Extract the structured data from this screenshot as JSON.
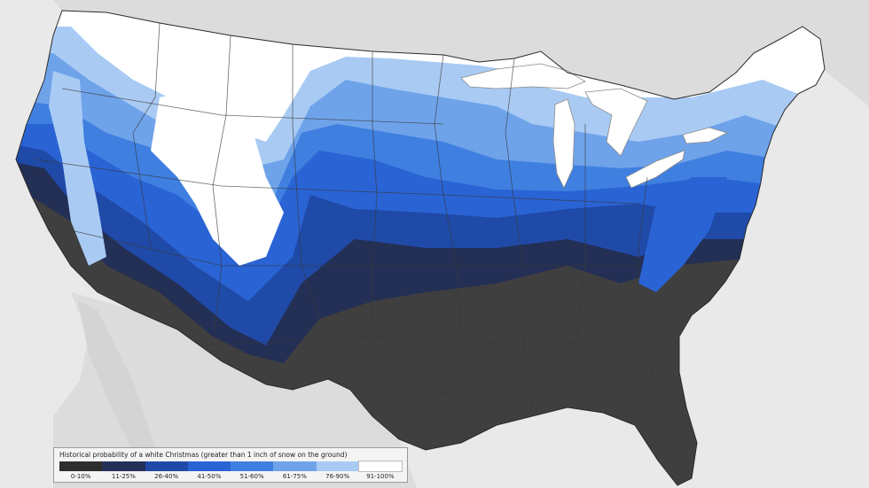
{
  "map": {
    "palette": {
      "background": "#e9e9e9",
      "land_outside": "#dcdcdc",
      "water": "#ffffff",
      "state_border": "#3a3a3a",
      "band_0_10": "#3f3f3f",
      "band_11_25": "#232f55",
      "band_26_40": "#1f4aa8",
      "band_41_50": "#2a63d4",
      "band_51_60": "#3f7fe0",
      "band_61_75": "#6ea3ea",
      "band_76_90": "#a9cbf3",
      "band_91_100": "#ffffff"
    }
  },
  "legend": {
    "title": "Historical probability of a white Christmas (greater than 1 inch of snow on the ground)",
    "items": [
      {
        "label": "0-10%",
        "color": "#2e2e2e"
      },
      {
        "label": "11-25%",
        "color": "#233058"
      },
      {
        "label": "26-40%",
        "color": "#1f4aa8"
      },
      {
        "label": "41-50%",
        "color": "#2a63d4"
      },
      {
        "label": "51-60%",
        "color": "#3f7fe0"
      },
      {
        "label": "61-75%",
        "color": "#6ea3ea"
      },
      {
        "label": "76-90%",
        "color": "#a9cbf3"
      },
      {
        "label": "91-100%",
        "color": "#ffffff"
      }
    ]
  }
}
